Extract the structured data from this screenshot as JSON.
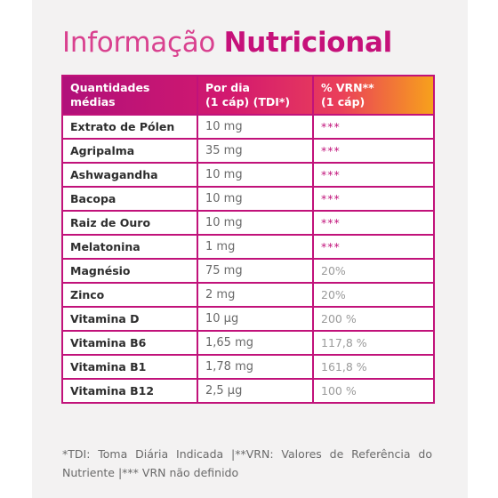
{
  "title": {
    "light": "Informação",
    "bold": "Nutricional"
  },
  "table": {
    "headers": {
      "col1_line1": "Quantidades",
      "col1_line2": "médias",
      "col2_line1": "Por dia",
      "col2_line2": "(1 cáp) (TDI*)",
      "col3_line1": "% VRN**",
      "col3_line2": "(1 cáp)"
    },
    "rows": [
      {
        "name": "Extrato de Pólen",
        "amount": "10 mg",
        "vrn": "***"
      },
      {
        "name": "Agripalma",
        "amount": "35 mg",
        "vrn": "***"
      },
      {
        "name": "Ashwagandha",
        "amount": "10 mg",
        "vrn": "***"
      },
      {
        "name": "Bacopa",
        "amount": "10 mg",
        "vrn": "***"
      },
      {
        "name": "Raiz de Ouro",
        "amount": "10 mg",
        "vrn": "***"
      },
      {
        "name": "Melatonina",
        "amount": "1 mg",
        "vrn": "***"
      },
      {
        "name": "Magnésio",
        "amount": "75 mg",
        "vrn": "20%"
      },
      {
        "name": "Zinco",
        "amount": "2 mg",
        "vrn": "20%"
      },
      {
        "name": "Vitamina D",
        "amount": "10 µg",
        "vrn": "200 %"
      },
      {
        "name": "Vitamina B6",
        "amount": "1,65 mg",
        "vrn": "117,8 %"
      },
      {
        "name": "Vitamina B1",
        "amount": "1,78 mg",
        "vrn": "161,8 %"
      },
      {
        "name": "Vitamina B12",
        "amount": "2,5 µg",
        "vrn": "100 %"
      }
    ]
  },
  "footnote": "*TDI: Toma Diária Indicada |**VRN: Valores de Referência do Nutriente |*** VRN não definido",
  "colors": {
    "accent": "#c1127a",
    "title_light": "#d9418f",
    "gradient_end": "#f7a21b"
  }
}
